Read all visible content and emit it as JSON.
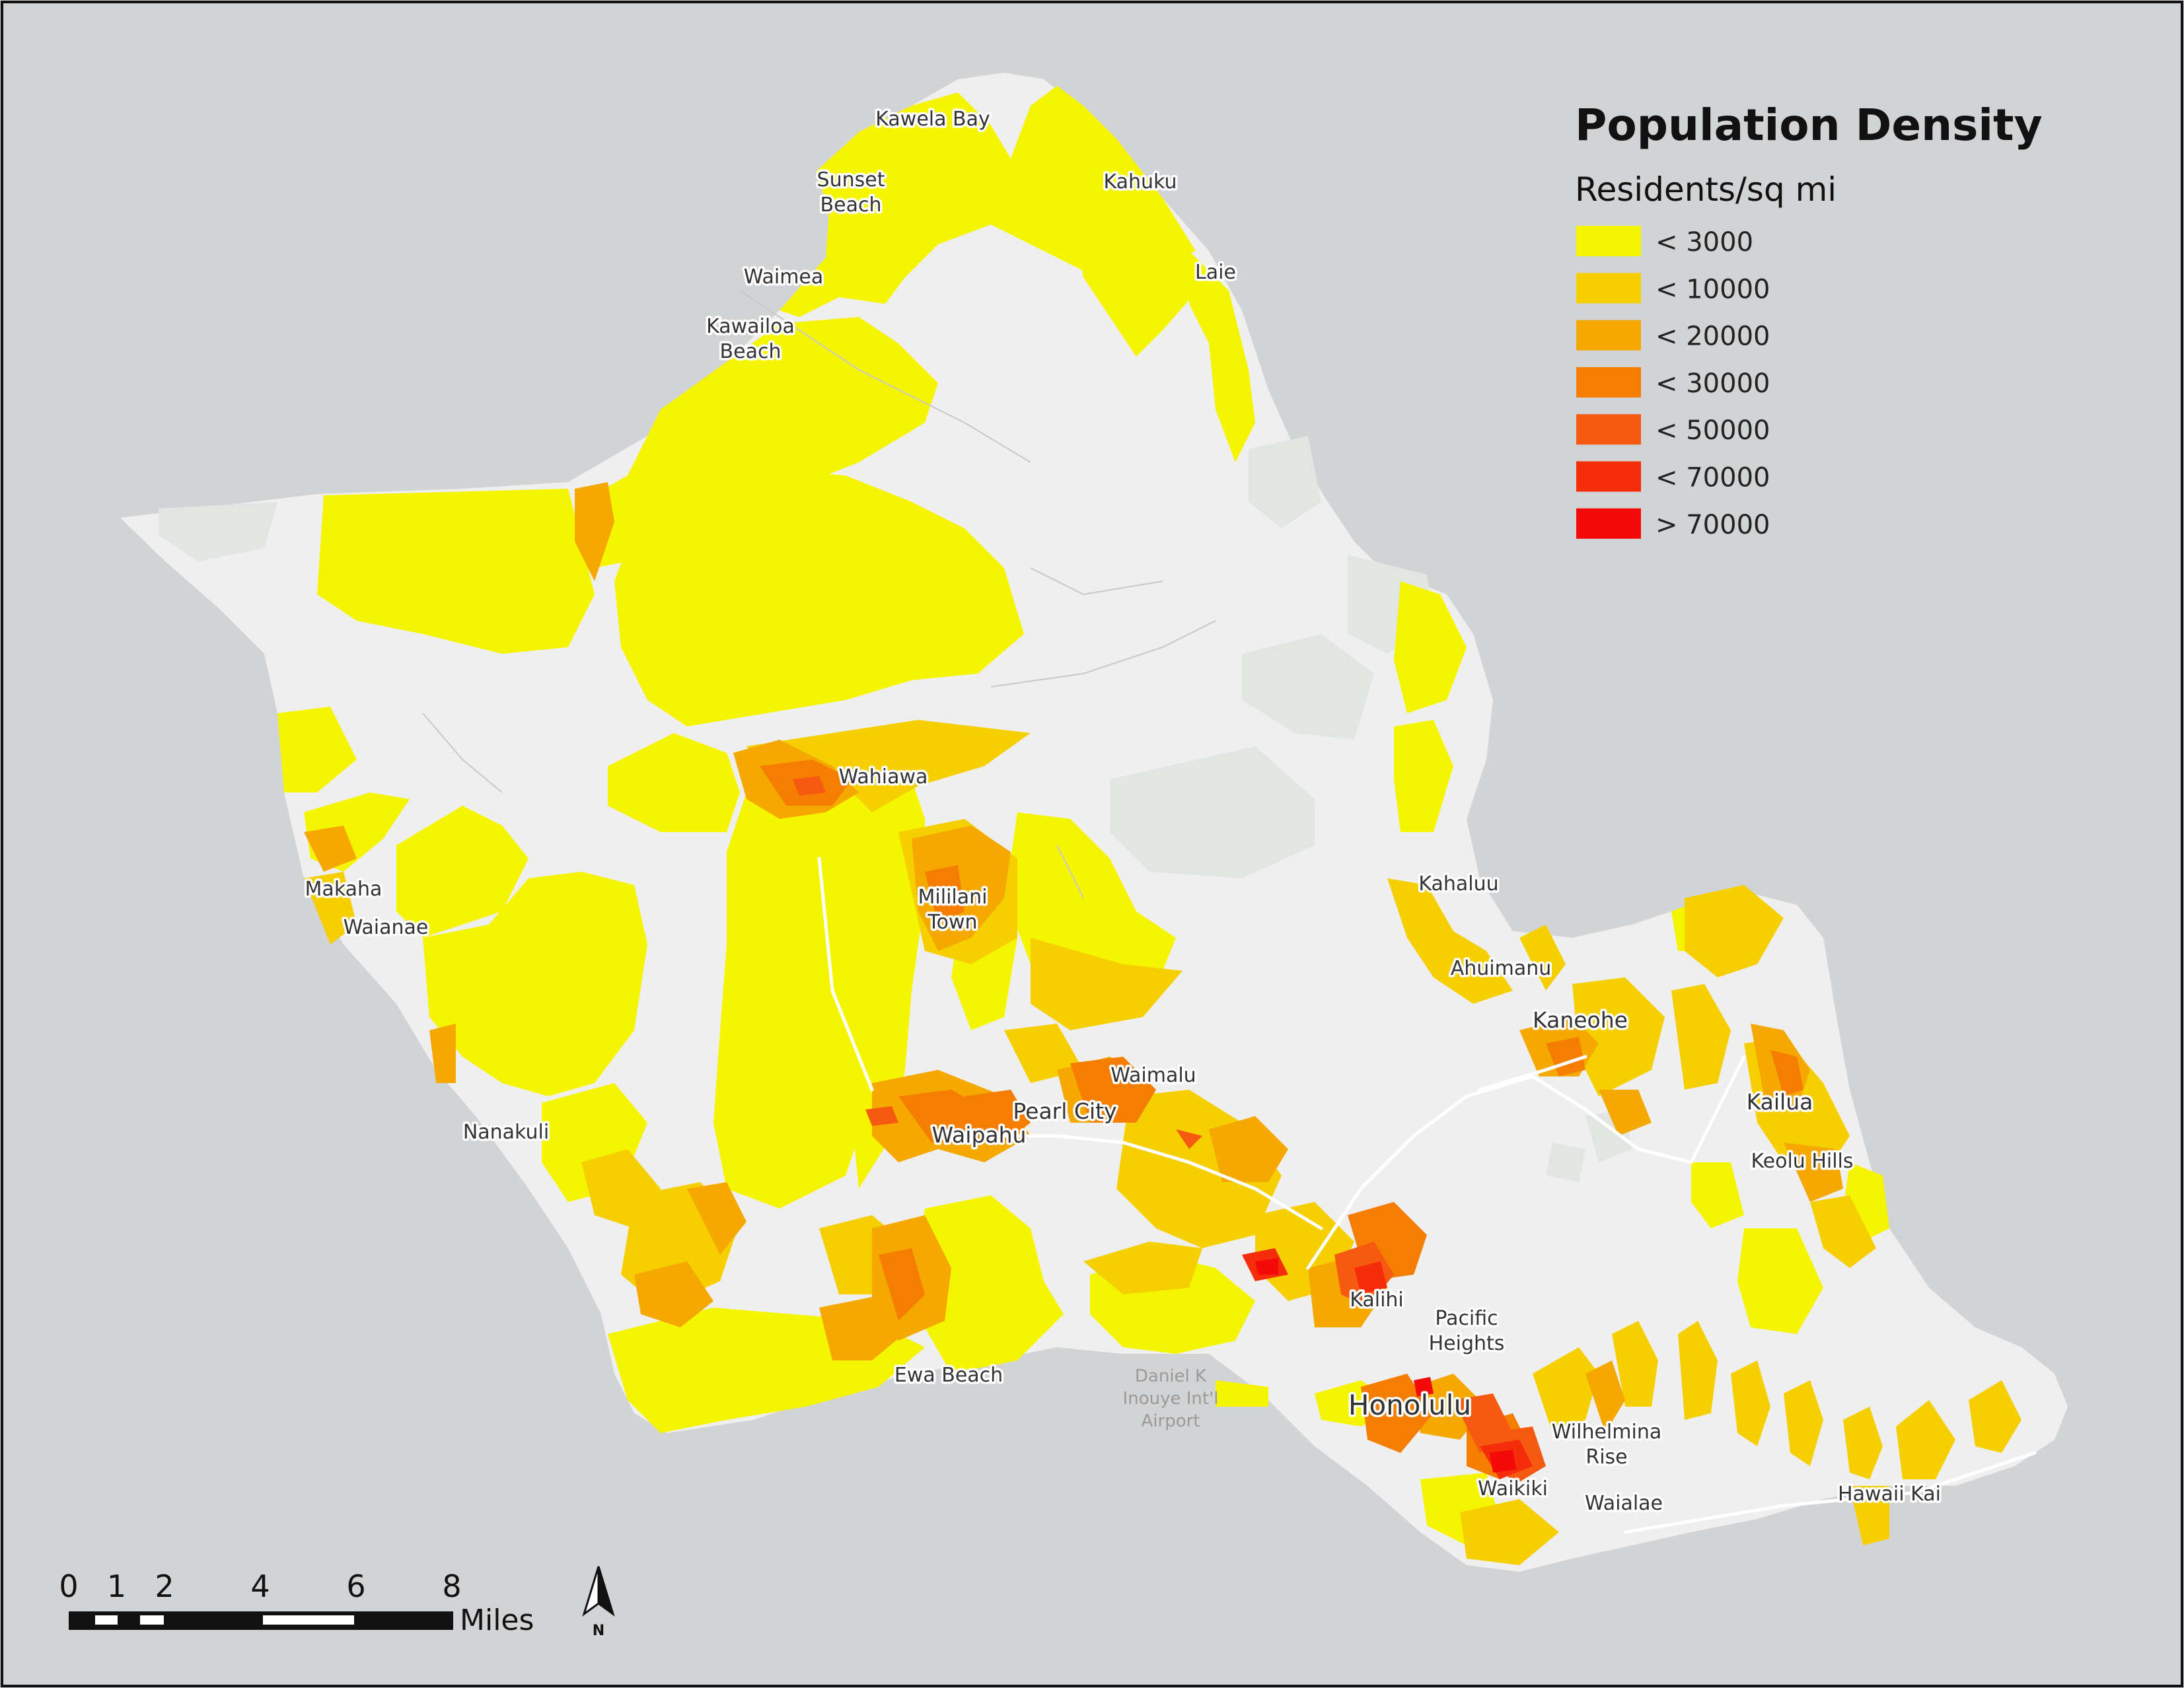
{
  "legend": {
    "title": "Population Density",
    "subtitle": "Residents/sq mi",
    "items": [
      {
        "label": "< 3000",
        "color": "#f5f500"
      },
      {
        "label": "< 10000",
        "color": "#f5cf00"
      },
      {
        "label": "< 20000",
        "color": "#f5a800"
      },
      {
        "label": "< 30000",
        "color": "#f57e00"
      },
      {
        "label": "< 50000",
        "color": "#f55a10"
      },
      {
        "label": "< 70000",
        "color": "#f52d0a"
      },
      {
        "label": "> 70000",
        "color": "#f50a0a"
      }
    ]
  },
  "places": {
    "kawela_bay": "Kawela Bay",
    "sunset_beach_1": "Sunset",
    "sunset_beach_2": "Beach",
    "kahuku": "Kahuku",
    "waimea": "Waimea",
    "laie": "Laie",
    "kawailoa_1": "Kawailoa",
    "kawailoa_2": "Beach",
    "wahiawa": "Wahiawa",
    "mililani_1": "Mililani",
    "mililani_2": "Town",
    "makaha": "Makaha",
    "waianae": "Waianae",
    "kahaluu": "Kahaluu",
    "ahuimanu": "Ahuimanu",
    "kaneohe": "Kaneohe",
    "waimalu": "Waimalu",
    "pearl_city": "Pearl City",
    "waipahu": "Waipahu",
    "kailua": "Kailua",
    "keolu_hills": "Keolu Hills",
    "nanakuli": "Nanakuli",
    "kalihi": "Kalihi",
    "pacific_heights_1": "Pacific",
    "pacific_heights_2": "Heights",
    "ewa_beach": "Ewa Beach",
    "honolulu": "Honolulu",
    "wilhelmina_1": "Wilhelmina",
    "wilhelmina_2": "Rise",
    "waikiki": "Waikiki",
    "waialae": "Waialae",
    "hawaii_kai": "Hawaii Kai"
  },
  "airport": {
    "line1": "Daniel K",
    "line2": "Inouye Int'l",
    "line3": "Airport"
  },
  "scale_bar": {
    "ticks": [
      "0",
      "1",
      "2",
      "4",
      "6",
      "8"
    ],
    "unit": "Miles"
  },
  "north_arrow": {
    "letter": "N",
    "icon": "north-arrow-icon"
  },
  "colors": {
    "ocean": "#d1d3d4",
    "land": "#efefef",
    "park": "#e3e7e4",
    "border": "#111111"
  }
}
